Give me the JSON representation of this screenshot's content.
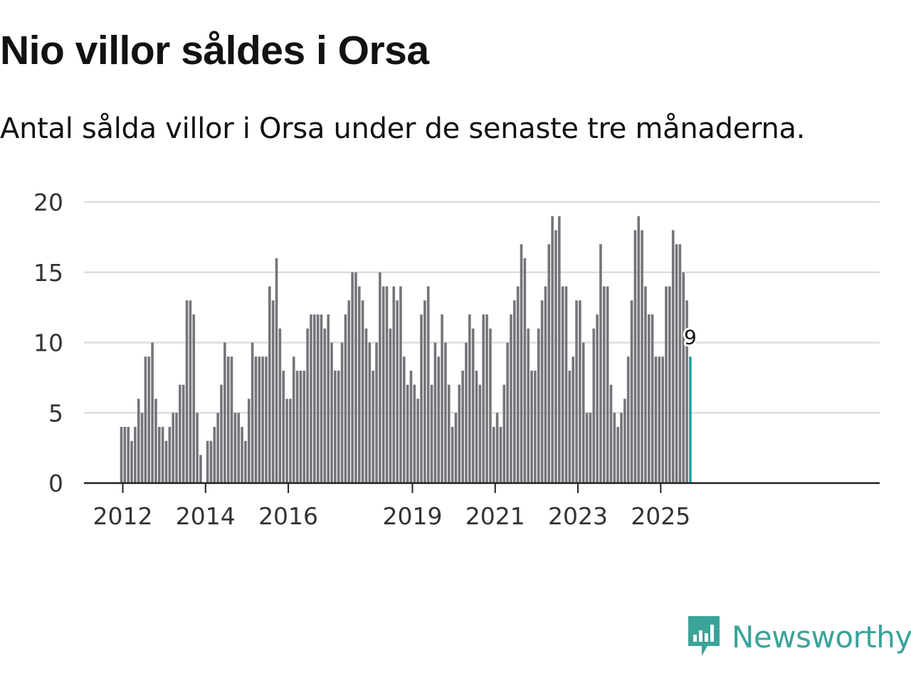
{
  "header": {
    "title": "Nio villor såldes i Orsa",
    "subtitle": "Antal sålda villor i Orsa under de senaste tre månaderna."
  },
  "brand": {
    "name": "Newsworthy",
    "color": "#3aa39a",
    "icon": "newsworthy-logo-icon"
  },
  "colors": {
    "bar": "#75747a",
    "highlight": "#1aa39a",
    "grid": "#dddddd",
    "axis": "#222222"
  },
  "chart_data": {
    "type": "bar",
    "title": "Nio villor såldes i Orsa",
    "subtitle": "Antal sålda villor i Orsa under de senaste tre månaderna.",
    "xlabel": "",
    "ylabel": "",
    "ylim": [
      0,
      20
    ],
    "yticks": [
      0,
      5,
      10,
      15,
      20
    ],
    "grid": true,
    "start": "2012-01",
    "frequency": "monthly",
    "xtick_labels": [
      "2012",
      "2014",
      "2016",
      "2019",
      "2021",
      "2023",
      "2025"
    ],
    "highlight": {
      "category": "2025-10",
      "value": 9,
      "label": "9"
    },
    "categories": [
      "2012-01",
      "2012-02",
      "2012-03",
      "2012-04",
      "2012-05",
      "2012-06",
      "2012-07",
      "2012-08",
      "2012-09",
      "2012-10",
      "2012-11",
      "2012-12",
      "2013-01",
      "2013-02",
      "2013-03",
      "2013-04",
      "2013-05",
      "2013-06",
      "2013-07",
      "2013-08",
      "2013-09",
      "2013-10",
      "2013-11",
      "2013-12",
      "2014-01",
      "2014-02",
      "2014-03",
      "2014-04",
      "2014-05",
      "2014-06",
      "2014-07",
      "2014-08",
      "2014-09",
      "2014-10",
      "2014-11",
      "2014-12",
      "2015-01",
      "2015-02",
      "2015-03",
      "2015-04",
      "2015-05",
      "2015-06",
      "2015-07",
      "2015-08",
      "2015-09",
      "2015-10",
      "2015-11",
      "2015-12",
      "2016-01",
      "2016-02",
      "2016-03",
      "2016-04",
      "2016-05",
      "2016-06",
      "2016-07",
      "2016-08",
      "2016-09",
      "2016-10",
      "2016-11",
      "2016-12",
      "2017-01",
      "2017-02",
      "2017-03",
      "2017-04",
      "2017-05",
      "2017-06",
      "2017-07",
      "2017-08",
      "2017-09",
      "2017-10",
      "2017-11",
      "2017-12",
      "2018-01",
      "2018-02",
      "2018-03",
      "2018-04",
      "2018-05",
      "2018-06",
      "2018-07",
      "2018-08",
      "2018-09",
      "2018-10",
      "2018-11",
      "2018-12",
      "2019-01",
      "2019-02",
      "2019-03",
      "2019-04",
      "2019-05",
      "2019-06",
      "2019-07",
      "2019-08",
      "2019-09",
      "2019-10",
      "2019-11",
      "2019-12",
      "2020-01",
      "2020-02",
      "2020-03",
      "2020-04",
      "2020-05",
      "2020-06",
      "2020-07",
      "2020-08",
      "2020-09",
      "2020-10",
      "2020-11",
      "2020-12",
      "2021-01",
      "2021-02",
      "2021-03",
      "2021-04",
      "2021-05",
      "2021-06",
      "2021-07",
      "2021-08",
      "2021-09",
      "2021-10",
      "2021-11",
      "2021-12",
      "2022-01",
      "2022-02",
      "2022-03",
      "2022-04",
      "2022-05",
      "2022-06",
      "2022-07",
      "2022-08",
      "2022-09",
      "2022-10",
      "2022-11",
      "2022-12",
      "2023-01",
      "2023-02",
      "2023-03",
      "2023-04",
      "2023-05",
      "2023-06",
      "2023-07",
      "2023-08",
      "2023-09",
      "2023-10",
      "2023-11",
      "2023-12",
      "2024-01",
      "2024-02",
      "2024-03",
      "2024-04",
      "2024-05",
      "2024-06",
      "2024-07",
      "2024-08",
      "2024-09",
      "2024-10",
      "2024-11",
      "2024-12",
      "2025-01",
      "2025-02",
      "2025-03",
      "2025-04",
      "2025-05",
      "2025-06",
      "2025-07",
      "2025-08",
      "2025-09",
      "2025-10"
    ],
    "values": [
      4,
      4,
      4,
      3,
      4,
      6,
      5,
      9,
      9,
      10,
      6,
      4,
      4,
      3,
      4,
      5,
      5,
      7,
      7,
      13,
      13,
      12,
      5,
      2,
      0,
      3,
      3,
      4,
      5,
      7,
      10,
      9,
      9,
      5,
      5,
      4,
      3,
      6,
      10,
      9,
      9,
      9,
      9,
      14,
      13,
      16,
      11,
      8,
      6,
      6,
      9,
      8,
      8,
      8,
      11,
      12,
      12,
      12,
      12,
      11,
      12,
      10,
      8,
      8,
      10,
      12,
      13,
      15,
      15,
      14,
      13,
      11,
      10,
      8,
      10,
      15,
      14,
      14,
      11,
      14,
      13,
      14,
      9,
      7,
      8,
      7,
      6,
      12,
      13,
      14,
      7,
      10,
      9,
      12,
      10,
      7,
      4,
      5,
      7,
      8,
      10,
      12,
      11,
      8,
      7,
      12,
      12,
      11,
      4,
      5,
      4,
      7,
      10,
      12,
      13,
      14,
      17,
      16,
      11,
      8,
      8,
      11,
      13,
      14,
      17,
      19,
      18,
      19,
      14,
      14,
      8,
      9,
      13,
      13,
      10,
      5,
      5,
      11,
      12,
      17,
      14,
      14,
      7,
      5,
      4,
      5,
      6,
      9,
      13,
      18,
      19,
      18,
      14,
      12,
      12,
      9,
      9,
      9,
      14,
      14,
      18,
      17,
      17,
      15,
      13,
      9
    ]
  }
}
